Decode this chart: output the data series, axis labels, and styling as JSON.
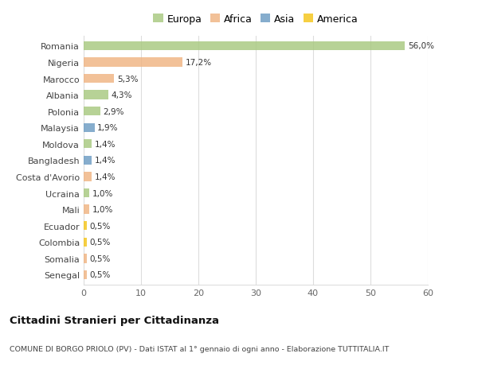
{
  "countries": [
    "Romania",
    "Nigeria",
    "Marocco",
    "Albania",
    "Polonia",
    "Malaysia",
    "Moldova",
    "Bangladesh",
    "Costa d'Avorio",
    "Ucraina",
    "Mali",
    "Ecuador",
    "Colombia",
    "Somalia",
    "Senegal"
  ],
  "values": [
    56.0,
    17.2,
    5.3,
    4.3,
    2.9,
    1.9,
    1.4,
    1.4,
    1.4,
    1.0,
    1.0,
    0.5,
    0.5,
    0.5,
    0.5
  ],
  "labels": [
    "56,0%",
    "17,2%",
    "5,3%",
    "4,3%",
    "2,9%",
    "1,9%",
    "1,4%",
    "1,4%",
    "1,4%",
    "1,0%",
    "1,0%",
    "0,5%",
    "0,5%",
    "0,5%",
    "0,5%"
  ],
  "colors": [
    "#a8c97f",
    "#f0b482",
    "#f0b482",
    "#a8c97f",
    "#a8c97f",
    "#6b9bc3",
    "#a8c97f",
    "#6b9bc3",
    "#f0b482",
    "#a8c97f",
    "#f0b482",
    "#f5c518",
    "#f5c518",
    "#f0b482",
    "#f0b482"
  ],
  "legend_labels": [
    "Europa",
    "Africa",
    "Asia",
    "America"
  ],
  "legend_colors": [
    "#a8c97f",
    "#f0b482",
    "#6b9bc3",
    "#f5c518"
  ],
  "title": "Cittadini Stranieri per Cittadinanza",
  "subtitle": "COMUNE DI BORGO PRIOLO (PV) - Dati ISTAT al 1° gennaio di ogni anno - Elaborazione TUTTITALIA.IT",
  "xlim": [
    0,
    60
  ],
  "xticks": [
    0,
    10,
    20,
    30,
    40,
    50,
    60
  ],
  "background_color": "#ffffff",
  "grid_color": "#dddddd",
  "bar_height": 0.55
}
